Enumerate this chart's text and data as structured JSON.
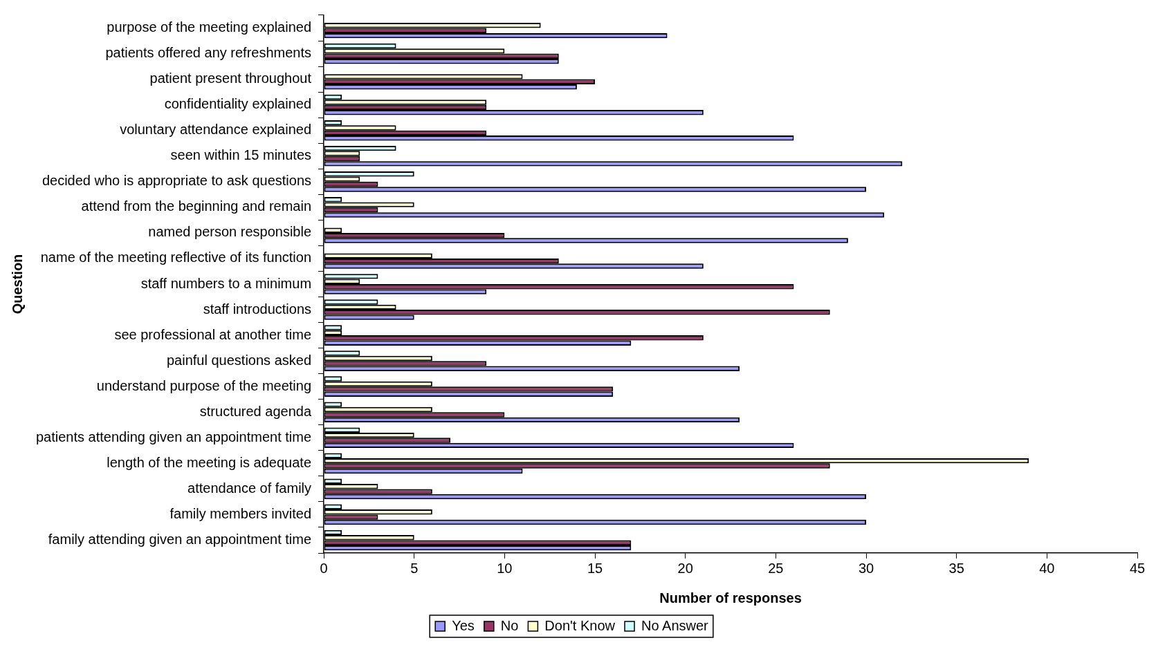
{
  "chart_data": {
    "type": "bar",
    "orientation": "horizontal",
    "xlabel": "Number of responses",
    "ylabel": "Question",
    "categories": [
      "purpose of the meeting explained",
      "patients offered any refreshments",
      "patient present throughout",
      "confidentiality explained",
      "voluntary attendance explained",
      "seen within 15 minutes",
      "decided who is appropriate to ask questions",
      "attend from the beginning and remain",
      "named person responsible",
      "name of the meeting reflective of its function",
      "staff numbers to a minimum",
      "staff introductions",
      "see professional at another time",
      "painful questions asked",
      "understand purpose of the meeting",
      "structured agenda",
      "patients attending given an appointment time",
      "length of the meeting is adequate",
      "attendance of family",
      "family members invited",
      "family attending given an appointment time"
    ],
    "series": [
      {
        "name": "Yes",
        "color": "#9999ff",
        "values": [
          19,
          13,
          14,
          21,
          26,
          32,
          30,
          31,
          29,
          21,
          9,
          5,
          17,
          23,
          16,
          23,
          26,
          11,
          30,
          30,
          17
        ]
      },
      {
        "name": "No",
        "color": "#993366",
        "values": [
          9,
          13,
          15,
          9,
          9,
          2,
          3,
          3,
          10,
          13,
          26,
          28,
          21,
          9,
          16,
          10,
          7,
          28,
          6,
          3,
          17
        ]
      },
      {
        "name": "Don't Know",
        "color": "#ffffcc",
        "values": [
          12,
          10,
          11,
          9,
          4,
          2,
          2,
          5,
          1,
          6,
          2,
          4,
          1,
          6,
          6,
          6,
          5,
          39,
          3,
          6,
          5
        ]
      },
      {
        "name": "No Answer",
        "color": "#ccffff",
        "values": [
          0,
          4,
          0,
          1,
          1,
          4,
          5,
          1,
          0,
          0,
          3,
          3,
          1,
          2,
          1,
          1,
          2,
          1,
          1,
          1,
          1
        ]
      }
    ],
    "xlim": [
      0,
      45
    ],
    "xticks": [
      0,
      5,
      10,
      15,
      20,
      25,
      30,
      35,
      40,
      45
    ],
    "grid": false,
    "legend": "bottom"
  }
}
